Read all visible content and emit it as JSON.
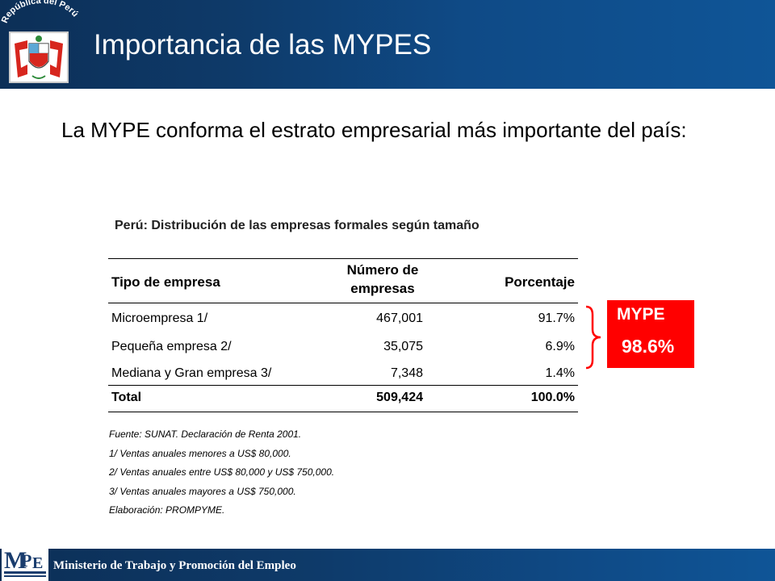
{
  "header": {
    "title": "Importancia de las MYPES",
    "seal_text": "República del Perú"
  },
  "intro": "La MYPE conforma el estrato empresarial más importante del país:",
  "table": {
    "title": "Perú: Distribución de las empresas formales según tamaño",
    "headers": {
      "type": "Tipo de empresa",
      "count_line1": "Número de",
      "count_line2": "empresas",
      "pct": "Porcentaje"
    },
    "rows": [
      {
        "type": "Microempresa 1/",
        "count": "467,001",
        "pct": "91.7%"
      },
      {
        "type": "Pequeña empresa 2/",
        "count": "35,075",
        "pct": "6.9%"
      },
      {
        "type": "Mediana y Gran empresa 3/",
        "count": "7,348",
        "pct": "1.4%"
      }
    ],
    "total": {
      "type": "Total",
      "count": "509,424",
      "pct": "100.0%"
    }
  },
  "notes": [
    "Fuente:  SUNAT. Declaración de Renta 2001.",
    "1/ Ventas anuales menores a US$ 80,000.",
    "2/ Ventas anuales entre US$ 80,000 y US$ 750,000.",
    "3/ Ventas anuales mayores a US$ 750,000.",
    "Elaboración: PROMPYME."
  ],
  "callout": {
    "label": "MYPE",
    "value": "98.6%"
  },
  "footer": {
    "text": "Ministerio de Trabajo y Promoción del Empleo",
    "logo_text": "MPE"
  },
  "colors": {
    "header_blue": "#0e3a69",
    "callout_red": "#ff0000"
  }
}
